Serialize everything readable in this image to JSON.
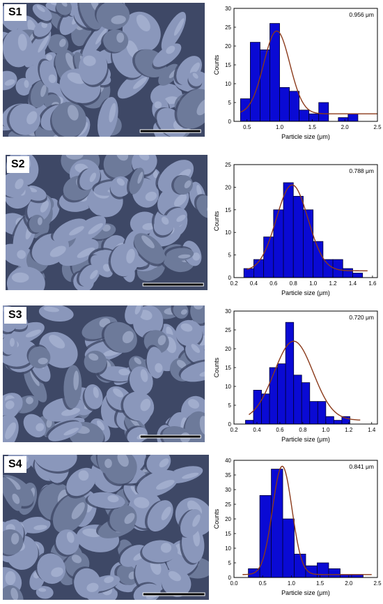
{
  "panels": [
    {
      "label": "S1"
    },
    {
      "label": "S2"
    },
    {
      "label": "S3"
    },
    {
      "label": "S4"
    }
  ],
  "colors": {
    "bar_fill": "#0a0ad4",
    "bar_stroke": "#000033",
    "fit_curve": "#8b3a1a",
    "sem_base": "#6d7a9a",
    "sem_grain": "#8a97bb",
    "sem_highlight": "#b4bfdd",
    "sem_shadow": "#3e4866",
    "scalebar": "#ffffff"
  },
  "chart_data": [
    {
      "type": "bar",
      "annotation": "0.956 μm",
      "xlabel": "Particle size (μm)",
      "ylabel": "Counts",
      "xlim": [
        0.3,
        2.5
      ],
      "ylim": [
        0,
        30
      ],
      "xticks": [
        0.5,
        1.0,
        1.5,
        2.0,
        2.5
      ],
      "xtick_labels": [
        "0.5",
        "1.0",
        "1.5",
        "2.0",
        "2.5"
      ],
      "yticks": [
        0,
        5,
        10,
        15,
        20,
        25,
        30
      ],
      "bins": [
        {
          "x0": 0.4,
          "x1": 0.55,
          "count": 6
        },
        {
          "x0": 0.55,
          "x1": 0.7,
          "count": 21
        },
        {
          "x0": 0.7,
          "x1": 0.85,
          "count": 19
        },
        {
          "x0": 0.85,
          "x1": 1.0,
          "count": 26
        },
        {
          "x0": 1.0,
          "x1": 1.15,
          "count": 9
        },
        {
          "x0": 1.15,
          "x1": 1.3,
          "count": 8
        },
        {
          "x0": 1.3,
          "x1": 1.45,
          "count": 3
        },
        {
          "x0": 1.45,
          "x1": 1.6,
          "count": 2
        },
        {
          "x0": 1.6,
          "x1": 1.75,
          "count": 5
        },
        {
          "x0": 1.75,
          "x1": 1.9,
          "count": 0
        },
        {
          "x0": 1.9,
          "x1": 2.05,
          "count": 1
        },
        {
          "x0": 2.05,
          "x1": 2.2,
          "count": 2
        }
      ],
      "fit": {
        "amplitude": 22,
        "center": 0.956,
        "sigma": 0.2,
        "baseline": 2,
        "x_range": [
          0.4,
          2.5
        ]
      }
    },
    {
      "type": "bar",
      "annotation": "0.788 μm",
      "xlabel": "Particle size (μm)",
      "ylabel": "Counts",
      "xlim": [
        0.2,
        1.65
      ],
      "ylim": [
        0,
        25
      ],
      "xticks": [
        0.2,
        0.4,
        0.6,
        0.8,
        1.0,
        1.2,
        1.4,
        1.6
      ],
      "xtick_labels": [
        "0.2",
        "0.4",
        "0.6",
        "0.8",
        "1.0",
        "1.2",
        "1.4",
        "1.6"
      ],
      "yticks": [
        0,
        5,
        10,
        15,
        20,
        25
      ],
      "bins": [
        {
          "x0": 0.3,
          "x1": 0.4,
          "count": 2
        },
        {
          "x0": 0.4,
          "x1": 0.5,
          "count": 4
        },
        {
          "x0": 0.5,
          "x1": 0.6,
          "count": 9
        },
        {
          "x0": 0.6,
          "x1": 0.7,
          "count": 15
        },
        {
          "x0": 0.7,
          "x1": 0.8,
          "count": 21
        },
        {
          "x0": 0.8,
          "x1": 0.9,
          "count": 18
        },
        {
          "x0": 0.9,
          "x1": 1.0,
          "count": 15
        },
        {
          "x0": 1.0,
          "x1": 1.1,
          "count": 8
        },
        {
          "x0": 1.1,
          "x1": 1.2,
          "count": 4
        },
        {
          "x0": 1.2,
          "x1": 1.3,
          "count": 4
        },
        {
          "x0": 1.3,
          "x1": 1.4,
          "count": 2
        },
        {
          "x0": 1.4,
          "x1": 1.5,
          "count": 1
        }
      ],
      "fit": {
        "amplitude": 19,
        "center": 0.788,
        "sigma": 0.16,
        "baseline": 1.5,
        "x_range": [
          0.33,
          1.55
        ]
      }
    },
    {
      "type": "bar",
      "annotation": "0.720 μm",
      "xlabel": "Particle size (μm)",
      "ylabel": "Counts",
      "xlim": [
        0.2,
        1.45
      ],
      "ylim": [
        0,
        30
      ],
      "xticks": [
        0.2,
        0.4,
        0.6,
        0.8,
        1.0,
        1.2,
        1.4
      ],
      "xtick_labels": [
        "0.2",
        "0.4",
        "0.6",
        "0.8",
        "1.0",
        "1.2",
        "1.4"
      ],
      "yticks": [
        0,
        5,
        10,
        15,
        20,
        25,
        30
      ],
      "bins": [
        {
          "x0": 0.3,
          "x1": 0.37,
          "count": 1
        },
        {
          "x0": 0.37,
          "x1": 0.44,
          "count": 9
        },
        {
          "x0": 0.44,
          "x1": 0.51,
          "count": 8
        },
        {
          "x0": 0.51,
          "x1": 0.58,
          "count": 15
        },
        {
          "x0": 0.58,
          "x1": 0.65,
          "count": 16
        },
        {
          "x0": 0.65,
          "x1": 0.72,
          "count": 27
        },
        {
          "x0": 0.72,
          "x1": 0.79,
          "count": 13
        },
        {
          "x0": 0.79,
          "x1": 0.86,
          "count": 11
        },
        {
          "x0": 0.86,
          "x1": 0.93,
          "count": 6
        },
        {
          "x0": 0.93,
          "x1": 1.0,
          "count": 6
        },
        {
          "x0": 1.0,
          "x1": 1.07,
          "count": 2
        },
        {
          "x0": 1.07,
          "x1": 1.14,
          "count": 1
        },
        {
          "x0": 1.14,
          "x1": 1.21,
          "count": 2
        }
      ],
      "fit": {
        "amplitude": 21,
        "center": 0.72,
        "sigma": 0.17,
        "baseline": 1,
        "x_range": [
          0.33,
          1.3
        ]
      }
    },
    {
      "type": "bar",
      "annotation": "0.841 μm",
      "xlabel": "Particle size (μm)",
      "ylabel": "Counts",
      "xlim": [
        0.0,
        2.5
      ],
      "ylim": [
        0,
        40
      ],
      "xticks": [
        0.0,
        0.5,
        1.0,
        1.5,
        2.0,
        2.5
      ],
      "xtick_labels": [
        "0.0",
        "0.5",
        "1.0",
        "1.5",
        "2.0",
        "2.5"
      ],
      "yticks": [
        0,
        5,
        10,
        15,
        20,
        25,
        30,
        35,
        40
      ],
      "bins": [
        {
          "x0": 0.25,
          "x1": 0.45,
          "count": 3
        },
        {
          "x0": 0.45,
          "x1": 0.65,
          "count": 28
        },
        {
          "x0": 0.65,
          "x1": 0.85,
          "count": 37
        },
        {
          "x0": 0.85,
          "x1": 1.05,
          "count": 20
        },
        {
          "x0": 1.05,
          "x1": 1.25,
          "count": 8
        },
        {
          "x0": 1.25,
          "x1": 1.45,
          "count": 4
        },
        {
          "x0": 1.45,
          "x1": 1.65,
          "count": 5
        },
        {
          "x0": 1.65,
          "x1": 1.85,
          "count": 3
        },
        {
          "x0": 1.85,
          "x1": 2.05,
          "count": 1
        },
        {
          "x0": 2.05,
          "x1": 2.25,
          "count": 1
        }
      ],
      "fit": {
        "amplitude": 37,
        "center": 0.841,
        "sigma": 0.17,
        "baseline": 1,
        "x_range": [
          0.15,
          2.4
        ]
      }
    }
  ]
}
